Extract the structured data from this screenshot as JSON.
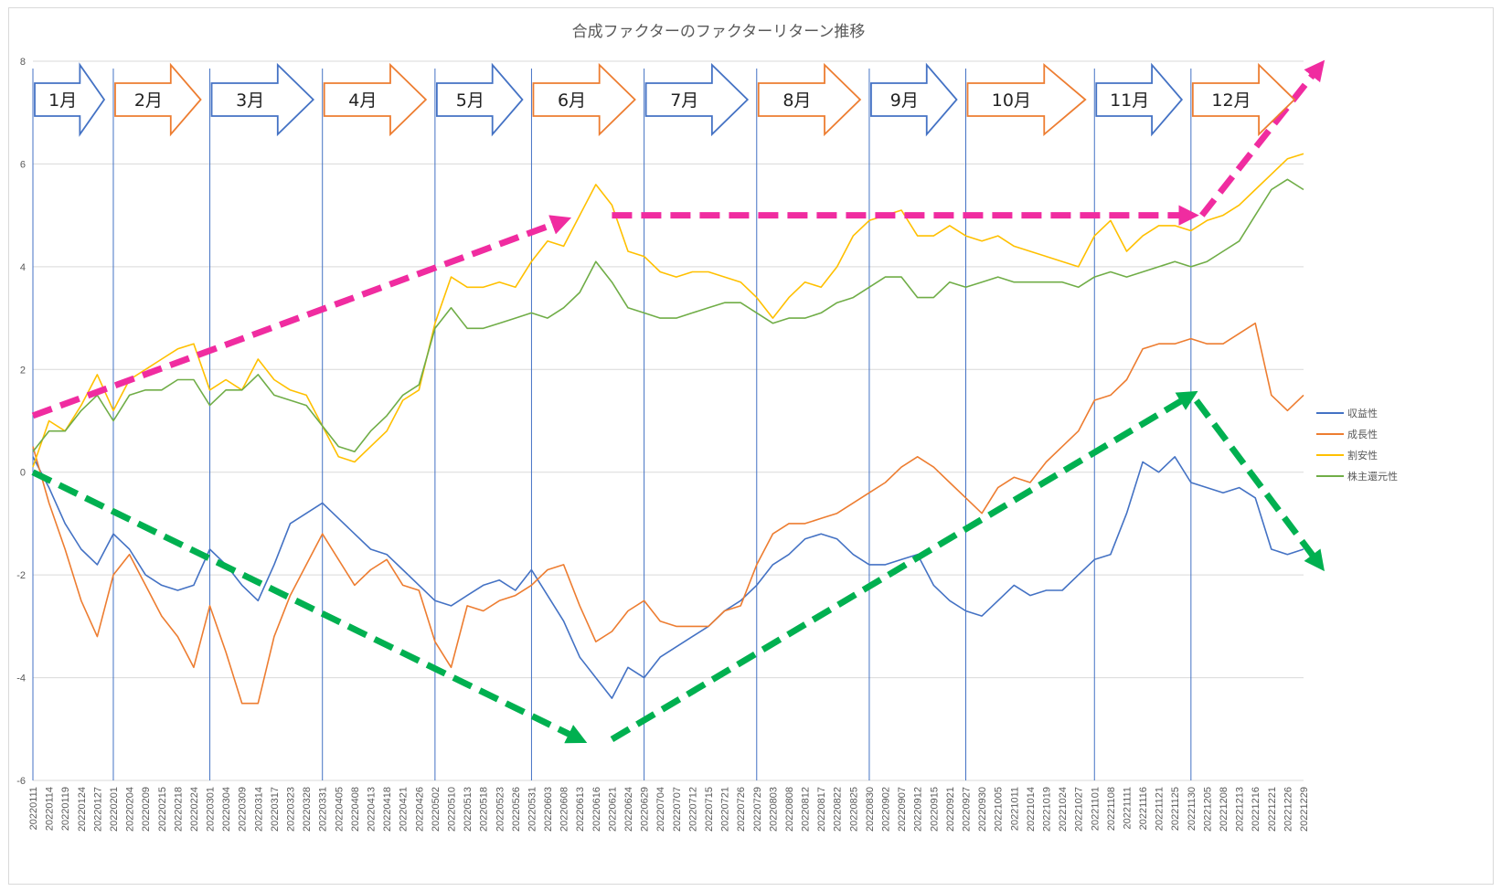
{
  "chart_data": {
    "type": "line",
    "title": "合成ファクターのファクターリターン推移",
    "xlabel": "",
    "ylabel": "",
    "ylim": [
      -6,
      8
    ],
    "yticks": [
      -6,
      -4,
      -2,
      0,
      2,
      4,
      6,
      8
    ],
    "grid": "horizontal",
    "legend_position": "right",
    "x_tick_labels": [
      "20220111",
      "20220114",
      "20220119",
      "20220124",
      "20220127",
      "20220201",
      "20220204",
      "20220209",
      "20220215",
      "20220218",
      "20220224",
      "20220301",
      "20220304",
      "20220309",
      "20220314",
      "20220317",
      "20220323",
      "20220328",
      "20220331",
      "20220405",
      "20220408",
      "20220413",
      "20220418",
      "20220421",
      "20220426",
      "20220502",
      "20220510",
      "20220513",
      "20220518",
      "20220523",
      "20220526",
      "20220531",
      "20220603",
      "20220608",
      "20220613",
      "20220616",
      "20220621",
      "20220624",
      "20220629",
      "20220704",
      "20220707",
      "20220712",
      "20220715",
      "20220721",
      "20220726",
      "20220729",
      "20220803",
      "20220808",
      "20220812",
      "20220817",
      "20220822",
      "20220825",
      "20220830",
      "20220902",
      "20220907",
      "20220912",
      "20220915",
      "20220921",
      "20220927",
      "20220930",
      "20221005",
      "20221011",
      "20221014",
      "20221019",
      "20221024",
      "20221027",
      "20221101",
      "20221108",
      "20221111",
      "20221116",
      "20221121",
      "20221125",
      "20221130",
      "20221205",
      "20221208",
      "20221213",
      "20221216",
      "20221221",
      "20221226",
      "20221229"
    ],
    "series": [
      {
        "name": "収益性",
        "color": "#4472c4",
        "values": [
          0.3,
          -0.3,
          -1.0,
          -1.5,
          -1.8,
          -1.2,
          -1.5,
          -2.0,
          -2.2,
          -2.3,
          -2.2,
          -1.5,
          -1.8,
          -2.2,
          -2.5,
          -1.8,
          -1.0,
          -0.8,
          -0.6,
          -0.9,
          -1.2,
          -1.5,
          -1.6,
          -1.9,
          -2.2,
          -2.5,
          -2.6,
          -2.4,
          -2.2,
          -2.1,
          -2.3,
          -1.9,
          -2.4,
          -2.9,
          -3.6,
          -4.0,
          -4.4,
          -3.8,
          -4.0,
          -3.6,
          -3.4,
          -3.2,
          -3.0,
          -2.7,
          -2.5,
          -2.2,
          -1.8,
          -1.6,
          -1.3,
          -1.2,
          -1.3,
          -1.6,
          -1.8,
          -1.8,
          -1.7,
          -1.6,
          -2.2,
          -2.5,
          -2.7,
          -2.8,
          -2.5,
          -2.2,
          -2.4,
          -2.3,
          -2.3,
          -2.0,
          -1.7,
          -1.6,
          -0.8,
          0.2,
          0.0,
          0.3,
          -0.2,
          -0.3,
          -0.4,
          -0.3,
          -0.5,
          -1.5,
          -1.6,
          -1.5
        ]
      },
      {
        "name": "成長性",
        "color": "#ed7d31",
        "values": [
          0.5,
          -0.6,
          -1.5,
          -2.5,
          -3.2,
          -2.0,
          -1.6,
          -2.2,
          -2.8,
          -3.2,
          -3.8,
          -2.6,
          -3.5,
          -4.5,
          -4.5,
          -3.2,
          -2.4,
          -1.8,
          -1.2,
          -1.7,
          -2.2,
          -1.9,
          -1.7,
          -2.2,
          -2.3,
          -3.3,
          -3.8,
          -2.6,
          -2.7,
          -2.5,
          -2.4,
          -2.2,
          -1.9,
          -1.8,
          -2.6,
          -3.3,
          -3.1,
          -2.7,
          -2.5,
          -2.9,
          -3.0,
          -3.0,
          -3.0,
          -2.7,
          -2.6,
          -1.8,
          -1.2,
          -1.0,
          -1.0,
          -0.9,
          -0.8,
          -0.6,
          -0.4,
          -0.2,
          0.1,
          0.3,
          0.1,
          -0.2,
          -0.5,
          -0.8,
          -0.3,
          -0.1,
          -0.2,
          0.2,
          0.5,
          0.8,
          1.4,
          1.5,
          1.8,
          2.4,
          2.5,
          2.5,
          2.6,
          2.5,
          2.5,
          2.7,
          2.9,
          1.5,
          1.2,
          1.5
        ]
      },
      {
        "name": "割安性",
        "color": "#ffc000",
        "values": [
          0.1,
          1.0,
          0.8,
          1.3,
          1.9,
          1.2,
          1.8,
          2.0,
          2.2,
          2.4,
          2.5,
          1.6,
          1.8,
          1.6,
          2.2,
          1.8,
          1.6,
          1.5,
          0.9,
          0.3,
          0.2,
          0.5,
          0.8,
          1.4,
          1.6,
          2.9,
          3.8,
          3.6,
          3.6,
          3.7,
          3.6,
          4.1,
          4.5,
          4.4,
          5.0,
          5.6,
          5.2,
          4.3,
          4.2,
          3.9,
          3.8,
          3.9,
          3.9,
          3.8,
          3.7,
          3.4,
          3.0,
          3.4,
          3.7,
          3.6,
          4.0,
          4.6,
          4.9,
          5.0,
          5.1,
          4.6,
          4.6,
          4.8,
          4.6,
          4.5,
          4.6,
          4.4,
          4.3,
          4.2,
          4.1,
          4.0,
          4.6,
          4.9,
          4.3,
          4.6,
          4.8,
          4.8,
          4.7,
          4.9,
          5.0,
          5.2,
          5.5,
          5.8,
          6.1,
          6.2
        ]
      },
      {
        "name": "株主還元性",
        "color": "#70ad47",
        "values": [
          0.4,
          0.8,
          0.8,
          1.2,
          1.5,
          1.0,
          1.5,
          1.6,
          1.6,
          1.8,
          1.8,
          1.3,
          1.6,
          1.6,
          1.9,
          1.5,
          1.4,
          1.3,
          0.9,
          0.5,
          0.4,
          0.8,
          1.1,
          1.5,
          1.7,
          2.8,
          3.2,
          2.8,
          2.8,
          2.9,
          3.0,
          3.1,
          3.0,
          3.2,
          3.5,
          4.1,
          3.7,
          3.2,
          3.1,
          3.0,
          3.0,
          3.1,
          3.2,
          3.3,
          3.3,
          3.1,
          2.9,
          3.0,
          3.0,
          3.1,
          3.3,
          3.4,
          3.6,
          3.8,
          3.8,
          3.4,
          3.4,
          3.7,
          3.6,
          3.7,
          3.8,
          3.7,
          3.7,
          3.7,
          3.7,
          3.6,
          3.8,
          3.9,
          3.8,
          3.9,
          4.0,
          4.1,
          4.0,
          4.1,
          4.3,
          4.5,
          5.0,
          5.5,
          5.7,
          5.5
        ]
      }
    ],
    "months": [
      "1月",
      "2月",
      "3月",
      "4月",
      "5月",
      "6月",
      "7月",
      "8月",
      "9月",
      "10月",
      "11月",
      "12月"
    ],
    "month_colors": [
      "#4472c4",
      "#ed7d31",
      "#4472c4",
      "#ed7d31",
      "#4472c4",
      "#ed7d31",
      "#4472c4",
      "#ed7d31",
      "#4472c4",
      "#ed7d31",
      "#4472c4",
      "#ed7d31"
    ],
    "month_start_ticks": [
      0,
      5,
      11,
      18,
      25,
      31,
      38,
      45,
      52,
      58,
      66,
      72
    ],
    "annotations": {
      "pink_color": "#f02ca0",
      "green_color": "#00b050",
      "pink_trend_points": [
        [
          0,
          1.1
        ],
        [
          33,
          4.9
        ],
        [
          36,
          5.0
        ],
        [
          72,
          5.0
        ],
        [
          80,
          7.9
        ]
      ],
      "green_trend_points": [
        [
          0,
          0.0
        ],
        [
          34,
          -5.2
        ],
        [
          36,
          -5.2
        ],
        [
          72,
          1.5
        ],
        [
          80,
          -1.8
        ]
      ]
    }
  }
}
